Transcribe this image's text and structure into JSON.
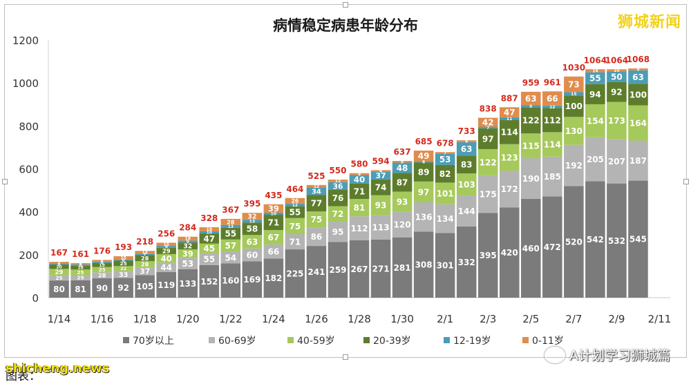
{
  "brand_watermark": "狮城新闻",
  "bottom_left_watermark": "shicheng.news",
  "bottom_right_watermark": "A计划学习狮城篇",
  "caption": "图表：",
  "chart_data": {
    "type": "bar",
    "stacked": true,
    "title": "病情稳定病患年龄分布",
    "ylim": [
      0,
      1200
    ],
    "yticks": [
      0,
      200,
      400,
      600,
      800,
      1000,
      1200
    ],
    "grid": false,
    "legend_position": "bottom",
    "categories": [
      "1/14",
      "1/15",
      "1/16",
      "1/17",
      "1/18",
      "1/19",
      "1/20",
      "1/21",
      "1/22",
      "1/23",
      "1/24",
      "1/25",
      "1/26",
      "1/27",
      "1/28",
      "1/29",
      "1/30",
      "1/31",
      "2/1",
      "2/2",
      "2/3",
      "2/4",
      "2/5",
      "2/6",
      "2/7",
      "2/8",
      "2/9",
      "2/10",
      "2/11"
    ],
    "xtick_labels": [
      "1/14",
      "1/16",
      "1/18",
      "1/20",
      "1/22",
      "1/24",
      "1/26",
      "1/28",
      "1/30",
      "2/1",
      "2/3",
      "2/5",
      "2/7",
      "2/9",
      "2/11"
    ],
    "totals": [
      167,
      161,
      176,
      193,
      218,
      256,
      284,
      328,
      367,
      395,
      435,
      464,
      525,
      550,
      580,
      594,
      637,
      685,
      678,
      733,
      838,
      887,
      959,
      961,
      1030,
      1064,
      1064,
      1068,
      null
    ],
    "series": [
      {
        "name": "70岁以上",
        "color": "#7b7b7b",
        "values": [
          80,
          81,
          90,
          92,
          105,
          119,
          133,
          152,
          160,
          169,
          182,
          225,
          241,
          259,
          267,
          271,
          281,
          308,
          301,
          332,
          395,
          420,
          460,
          472,
          520,
          542,
          532,
          545,
          null
        ]
      },
      {
        "name": "60-69岁",
        "color": "#b4b4b4",
        "values": [
          25,
          25,
          28,
          33,
          37,
          44,
          53,
          55,
          54,
          60,
          66,
          71,
          86,
          95,
          112,
          113,
          120,
          136,
          134,
          144,
          175,
          172,
          190,
          185,
          192,
          205,
          207,
          187,
          null
        ]
      },
      {
        "name": "40-59岁",
        "color": "#a5c95a",
        "values": [
          29,
          25,
          25,
          22,
          28,
          40,
          39,
          45,
          57,
          63,
          67,
          75,
          75,
          72,
          81,
          93,
          93,
          97,
          101,
          103,
          122,
          123,
          115,
          114,
          130,
          154,
          173,
          164,
          null
        ]
      },
      {
        "name": "20-39岁",
        "color": "#5e7d2c",
        "values": [
          20,
          18,
          19,
          25,
          28,
          29,
          32,
          47,
          55,
          58,
          71,
          55,
          77,
          76,
          71,
          74,
          87,
          89,
          82,
          83,
          97,
          114,
          122,
          112,
          100,
          94,
          92,
          100,
          null
        ]
      },
      {
        "name": "12-19岁",
        "color": "#4c9db5",
        "values": [
          6,
          6,
          6,
          6,
          7,
          9,
          9,
          10,
          13,
          13,
          10,
          12,
          34,
          36,
          40,
          37,
          48,
          6,
          53,
          63,
          7,
          11,
          9,
          12,
          15,
          55,
          50,
          63,
          null
        ]
      },
      {
        "name": "0-11岁",
        "color": "#e08c4c",
        "values": [
          7,
          6,
          8,
          15,
          13,
          15,
          18,
          19,
          28,
          32,
          39,
          26,
          12,
          12,
          9,
          6,
          8,
          49,
          7,
          8,
          42,
          47,
          63,
          66,
          73,
          14,
          10,
          9,
          null
        ]
      }
    ]
  }
}
